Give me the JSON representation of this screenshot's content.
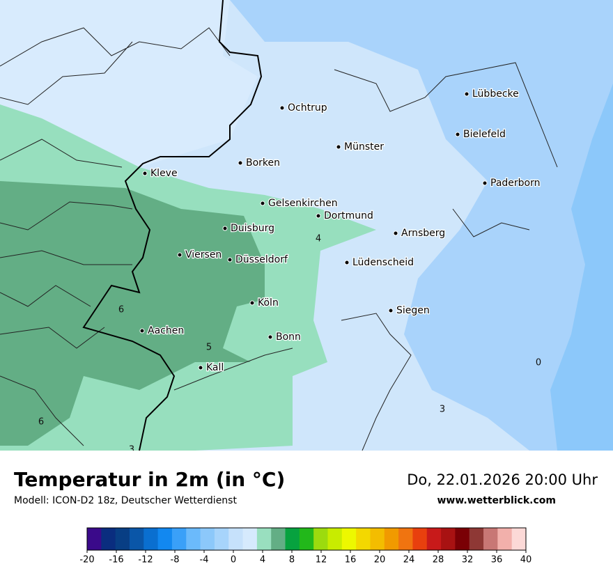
{
  "header": {
    "title": "Temperatur in 2m (in °C)",
    "subtitle": "Modell: ICON-D2 18z, Deutscher Wetterdienst",
    "datetime": "Do, 22.01.2026 20:00 Uhr",
    "website": "www.wetterblick.com"
  },
  "map": {
    "cities": [
      "Lübbecke",
      "Ochtrup",
      "Bielefeld",
      "Münster",
      "Borken",
      "Kleve",
      "Paderborn",
      "Gelsenkirchen",
      "Dortmund",
      "Duisburg",
      "Arnsberg",
      "Viersen",
      "Düsseldorf",
      "Lüdenscheid",
      "Köln",
      "Siegen",
      "Aachen",
      "Bonn",
      "Kall"
    ],
    "contour_labels": [
      4,
      6,
      5,
      6,
      0,
      3,
      3
    ]
  },
  "colorbar": {
    "lim": [
      -20,
      40
    ],
    "ticks": [
      -20,
      -16,
      -12,
      -8,
      -4,
      0,
      4,
      8,
      12,
      16,
      20,
      24,
      28,
      32,
      36,
      40
    ],
    "colors": [
      "#3a0a8a",
      "#0a2d7f",
      "#083e84",
      "#0a56a8",
      "#0a6fd0",
      "#1288f0",
      "#3aa0f8",
      "#6bbafb",
      "#8cc8fa",
      "#a7d4fb",
      "#c6e1fb",
      "#d6eafd",
      "#99dfbf",
      "#63ae85",
      "#07a23f",
      "#22b81a",
      "#9cdb0e",
      "#c8ec00",
      "#edf800",
      "#f3d800",
      "#f3bd00",
      "#f19a00",
      "#f07410",
      "#e8400e",
      "#c81a1a",
      "#a81212",
      "#7a0005",
      "#8e3835",
      "#c87775",
      "#f2b0ab",
      "#fcd9d7"
    ]
  }
}
